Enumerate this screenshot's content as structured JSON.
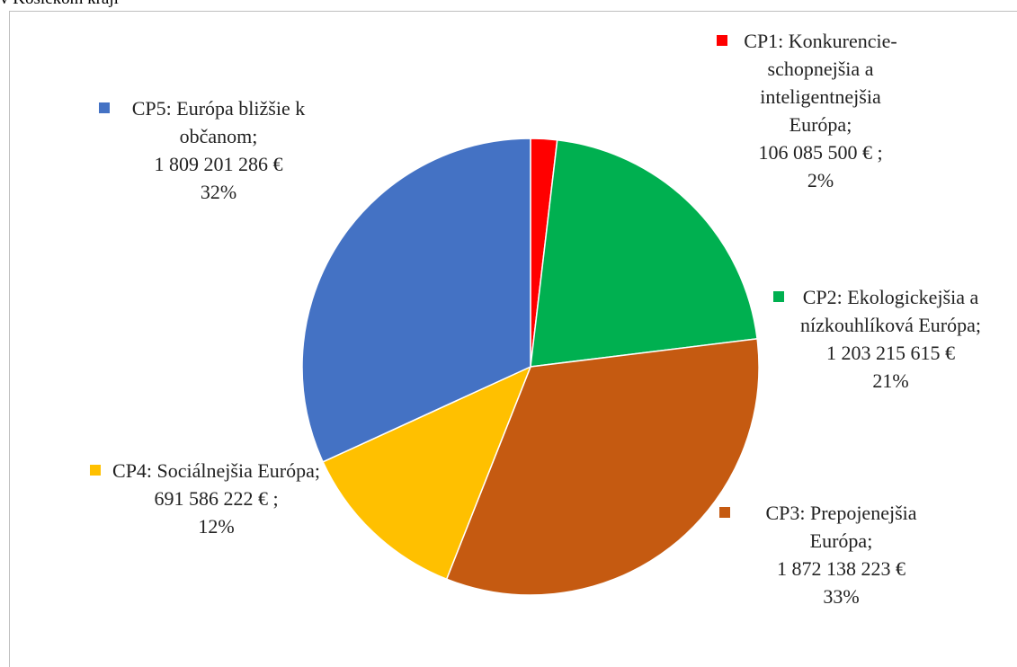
{
  "chart_data": {
    "type": "pie",
    "title": "v Košickom kraji",
    "categories": [
      "CP1: Konkurencie-schopnejšia a inteligentnejšia Európa;",
      "CP2: Ekologickejšia a nízkouhlíková Európa;",
      "CP3: Prepojenejšia Európa;",
      "CP4: Sociálnejšia Európa;",
      "CP5: Európa bližšie k občanom;"
    ],
    "values": [
      106085500,
      1203215615,
      1872138223,
      691586222,
      1809201286
    ],
    "value_labels": [
      "106 085 500 € ;",
      "1 203 215 615 €",
      "1 872 138 223 €",
      "691 586 222 € ;",
      "1 809 201 286 €"
    ],
    "percents": [
      2,
      21,
      33,
      12,
      32
    ],
    "percent_labels": [
      "2%",
      "21%",
      "33%",
      "12%",
      "32%"
    ],
    "colors": [
      "#ff0000",
      "#00b050",
      "#c55a11",
      "#ffc000",
      "#4472c4"
    ]
  }
}
